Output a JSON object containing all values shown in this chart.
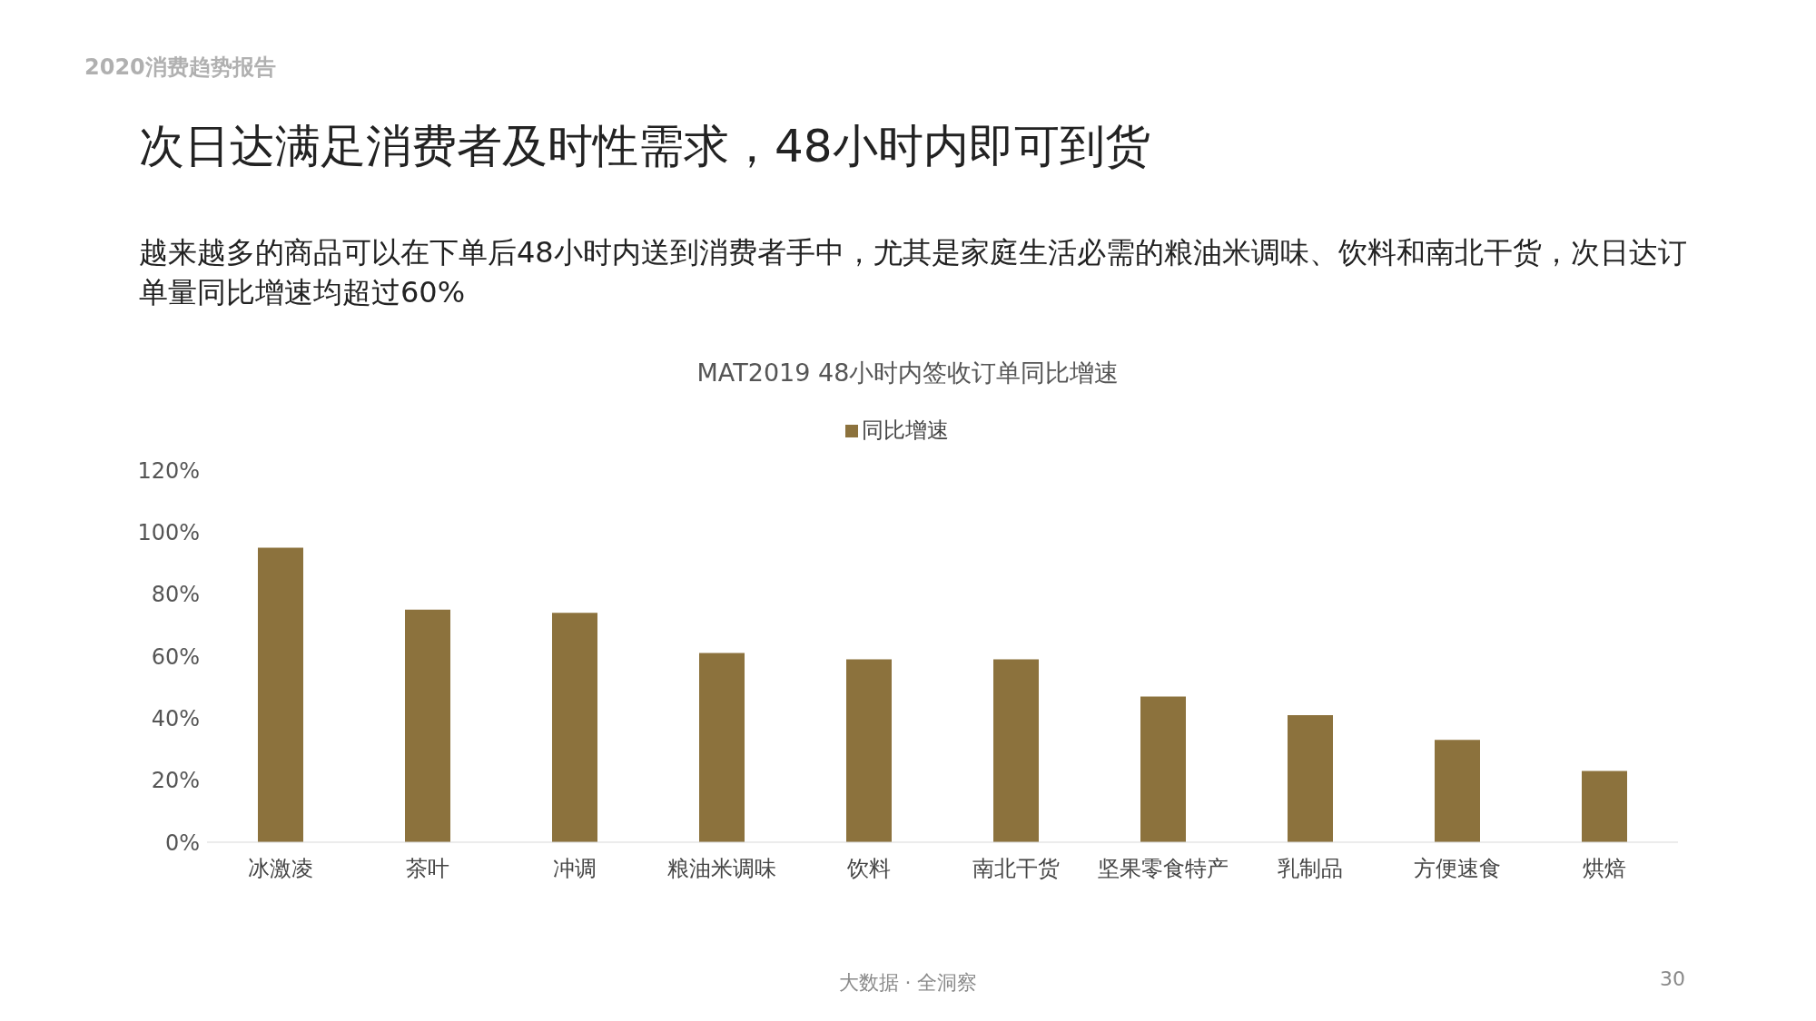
{
  "chart_data": {
    "type": "bar",
    "title": "次日达满足消费者及时性需求，48小时内即可到货",
    "subtitle": "越来越多的商品可以在下单后48小时内送到消费者手中，尤其是家庭生活必需的粮油米调味、饮料和南北干货，次日达订单量同比增速均超过60%",
    "annotations": [
      "2020消费趋势报告",
      "MAT2019 48小时内签收订单同比增速",
      "大数据 · 全洞察",
      "30"
    ],
    "categories": [
      "冰激凌",
      "茶叶",
      "冲调",
      "粮油米调味",
      "饮料",
      "南北干货",
      "坚果零食特产",
      "乳制品",
      "方便速食",
      "烘焙"
    ],
    "series": [
      {
        "name": "同比增速",
        "color": "#8c723d",
        "values": [
          95,
          75,
          74,
          61,
          59,
          59,
          47,
          41,
          33,
          23
        ]
      }
    ],
    "ylim": [
      0,
      120
    ],
    "yticks": [
      {
        "value": 0,
        "label": "0%"
      },
      {
        "value": 20,
        "label": "20%"
      },
      {
        "value": 40,
        "label": "40%"
      },
      {
        "value": 60,
        "label": "60%"
      },
      {
        "value": 80,
        "label": "80%"
      },
      {
        "value": 100,
        "label": "100%"
      },
      {
        "value": 120,
        "label": "120%"
      }
    ],
    "grid": false,
    "legend": "top"
  }
}
